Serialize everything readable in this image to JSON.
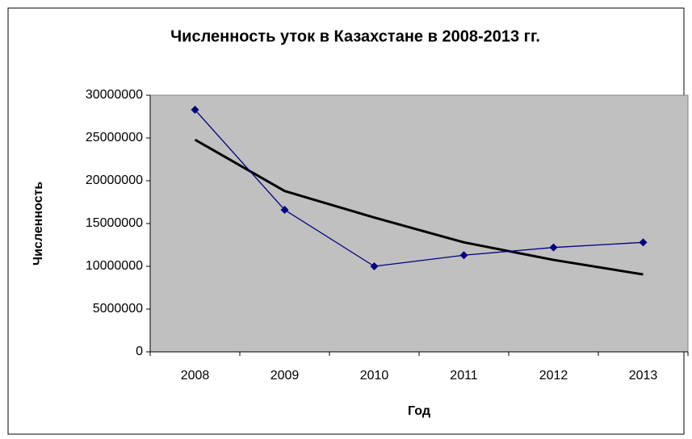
{
  "chart_data": {
    "type": "line",
    "title": "Численность уток в Казахстане в 2008-2013 гг.",
    "x_label": "Год",
    "y_label": "Численность",
    "categories": [
      "2008",
      "2009",
      "2010",
      "2011",
      "2012",
      "2013"
    ],
    "series": [
      {
        "color": "#000080",
        "values": [
          28300000,
          16600000,
          10000000,
          11300000,
          12200000,
          12800000
        ]
      },
      {
        "color": "#000000",
        "values": [
          24800000,
          18800000,
          15700000,
          12800000,
          10750000,
          9050000
        ]
      }
    ],
    "ylim": [
      0,
      30000000
    ],
    "yticks": [
      0,
      5000000,
      10000000,
      15000000,
      20000000,
      25000000,
      30000000
    ],
    "grid": false
  }
}
